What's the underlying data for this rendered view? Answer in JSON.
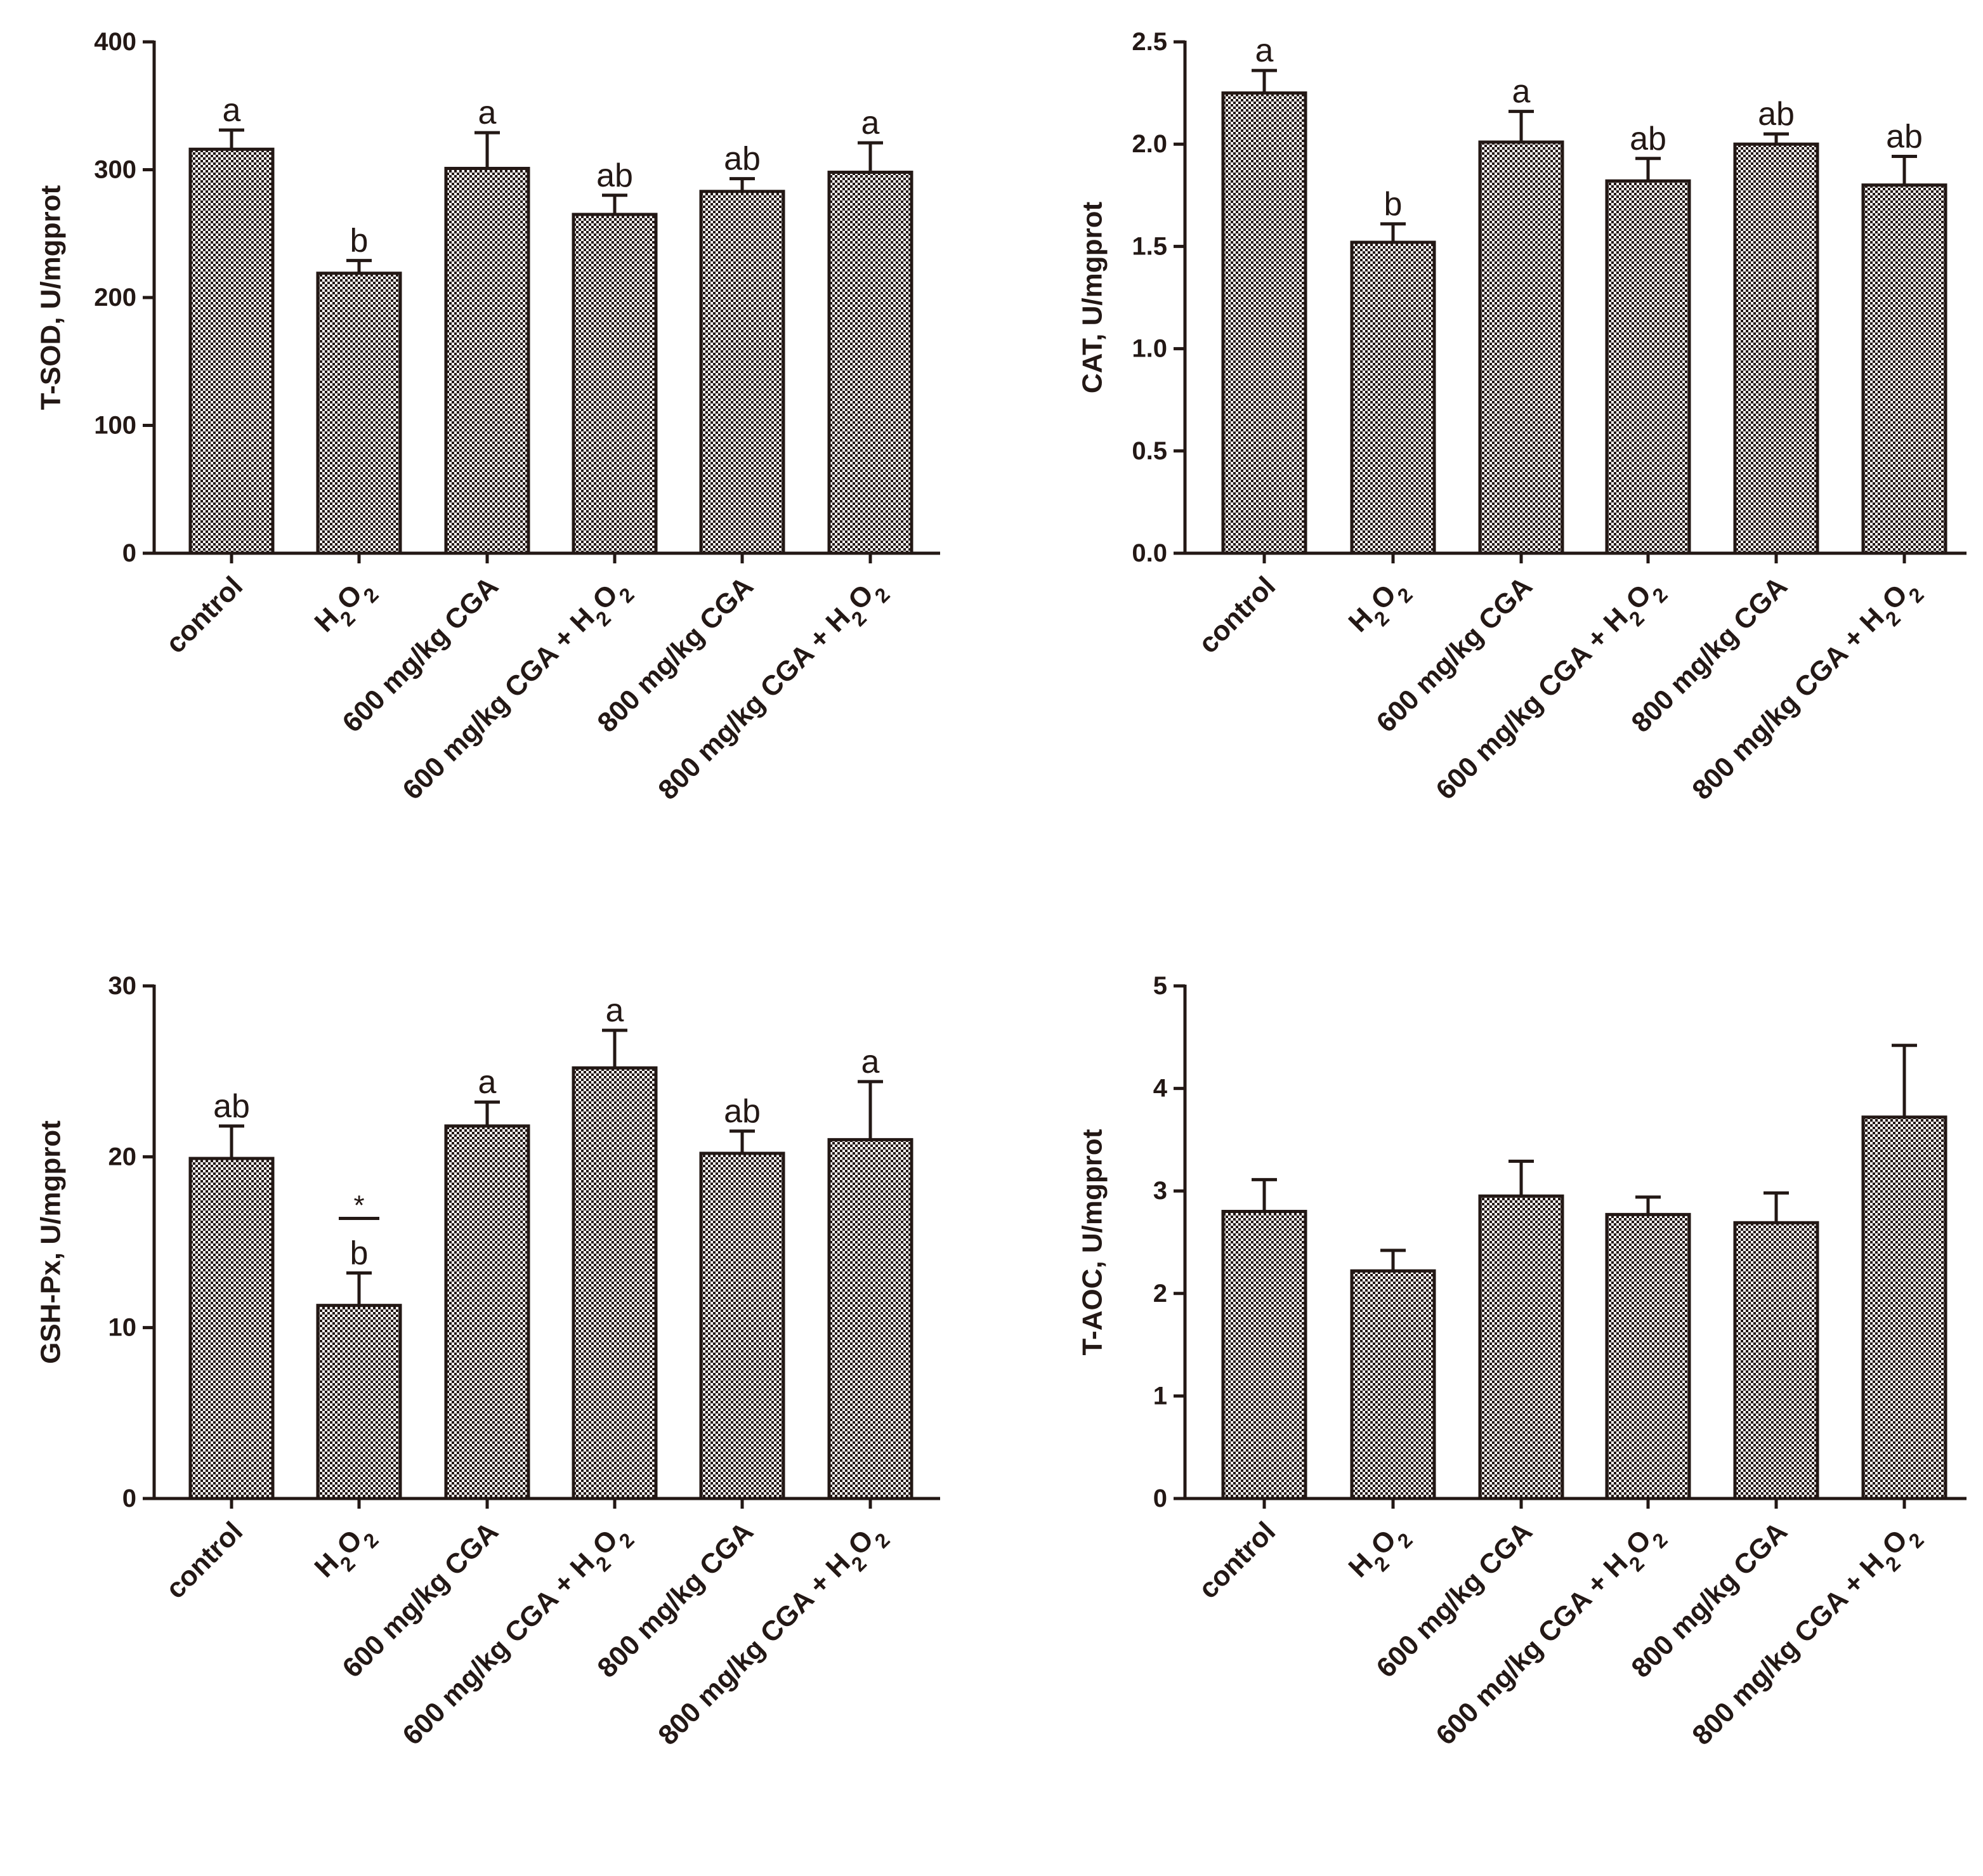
{
  "colors": {
    "ink": "#231815",
    "pattern_dark": "#231815",
    "pattern_light": "#ffffff"
  },
  "chart_data": [
    {
      "type": "bar",
      "ylabel": "T-SOD, U/mgprot",
      "ylim": [
        0,
        400
      ],
      "yticks": [
        "0",
        "100",
        "200",
        "300",
        "400"
      ],
      "categories": [
        "control",
        "H2O2",
        "600 mg/kg CGA",
        "600 mg/kg CGA + H2O2",
        "800 mg/kg CGA",
        "800 mg/kg CGA + H2O2"
      ],
      "values": [
        316,
        219,
        301,
        265,
        283,
        298
      ],
      "errors": [
        15,
        10,
        28,
        15,
        10,
        23
      ],
      "annotations": [
        "a",
        "b",
        "a",
        "ab",
        "ab",
        "a"
      ],
      "extra_marks": []
    },
    {
      "type": "bar",
      "ylabel": "CAT, U/mgprot",
      "ylim": [
        0,
        2.5
      ],
      "yticks": [
        "0.0",
        "0.5",
        "1.0",
        "1.5",
        "2.0",
        "2.5"
      ],
      "categories": [
        "control",
        "H2O2",
        "600 mg/kg CGA",
        "600 mg/kg CGA + H2O2",
        "800 mg/kg CGA",
        "800 mg/kg CGA + H2O2"
      ],
      "values": [
        2.25,
        1.52,
        2.01,
        1.82,
        2.0,
        1.8
      ],
      "errors": [
        0.11,
        0.09,
        0.15,
        0.11,
        0.05,
        0.14
      ],
      "annotations": [
        "a",
        "b",
        "a",
        "ab",
        "ab",
        "ab"
      ],
      "extra_marks": []
    },
    {
      "type": "bar",
      "ylabel": "GSH-Px, U/mgprot",
      "ylim": [
        0,
        30
      ],
      "yticks": [
        "0",
        "10",
        "20",
        "30"
      ],
      "categories": [
        "control",
        "H2O2",
        "600 mg/kg CGA",
        "600 mg/kg CGA + H2O2",
        "800 mg/kg CGA",
        "800 mg/kg CGA + H2O2"
      ],
      "values": [
        19.9,
        11.3,
        21.8,
        25.2,
        20.2,
        21.0
      ],
      "errors": [
        1.9,
        1.9,
        1.4,
        2.2,
        1.3,
        3.4
      ],
      "annotations": [
        "ab",
        "b",
        "a",
        "a",
        "ab",
        "a"
      ],
      "extra_marks": [
        {
          "category_index": 1,
          "text": "*"
        }
      ]
    },
    {
      "type": "bar",
      "ylabel": "T-AOC, U/mgprot",
      "ylim": [
        0,
        5
      ],
      "yticks": [
        "0",
        "1",
        "2",
        "3",
        "4",
        "5"
      ],
      "categories": [
        "control",
        "H2O2",
        "600 mg/kg CGA",
        "600 mg/kg CGA + H2O2",
        "800 mg/kg CGA",
        "800 mg/kg CGA + H2O2"
      ],
      "values": [
        2.8,
        2.22,
        2.95,
        2.77,
        2.69,
        3.72
      ],
      "errors": [
        0.31,
        0.2,
        0.34,
        0.17,
        0.29,
        0.7
      ],
      "annotations": [
        "",
        "",
        "",
        "",
        "",
        ""
      ],
      "extra_marks": []
    }
  ]
}
